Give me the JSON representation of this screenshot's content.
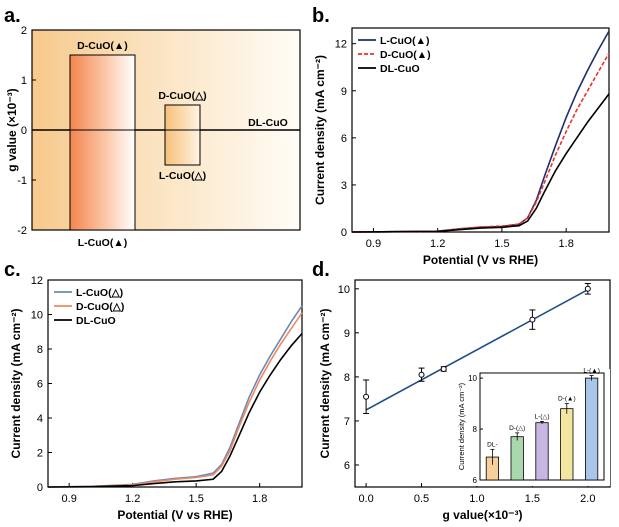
{
  "chart_data": [
    {
      "panel": "a.",
      "type": "bar",
      "ylabel": "g value (×10⁻³)",
      "ylim": [
        -2,
        2
      ],
      "yticks": [
        "-2",
        "-1",
        "0",
        "1",
        "2"
      ],
      "bars": [
        {
          "label": "D-CuO(▲)",
          "value": 1.5
        },
        {
          "label": "L-CuO(▲)",
          "value": -2.0
        },
        {
          "label": "D-CuO(△)",
          "value": 0.5
        },
        {
          "label": "L-CuO(△)",
          "value": -0.7
        },
        {
          "label": "DL-CuO",
          "value": 0
        }
      ]
    },
    {
      "panel": "b.",
      "type": "line",
      "xlabel": "Potential (V vs RHE)",
      "ylabel": "Current density (mA cm⁻²)",
      "xlim": [
        0.8,
        2.0
      ],
      "ylim": [
        0,
        13
      ],
      "xticks": [
        "0.9",
        "1.2",
        "1.5",
        "1.8"
      ],
      "yticks": [
        "0",
        "3",
        "6",
        "9",
        "12"
      ],
      "series": [
        {
          "name": "L-CuO(▲)",
          "color": "#1f2e6e",
          "dash": "",
          "x": [
            0.8,
            1.0,
            1.2,
            1.3,
            1.4,
            1.5,
            1.58,
            1.62,
            1.66,
            1.7,
            1.75,
            1.8,
            1.85,
            1.9,
            1.95,
            2.0
          ],
          "y": [
            0,
            0.02,
            0.05,
            0.2,
            0.3,
            0.35,
            0.5,
            0.9,
            2.0,
            3.6,
            5.5,
            7.3,
            8.9,
            10.3,
            11.6,
            12.8
          ]
        },
        {
          "name": "D-CuO(▲)",
          "color": "#e8322b",
          "dash": "4,2",
          "x": [
            0.8,
            1.0,
            1.2,
            1.3,
            1.4,
            1.5,
            1.58,
            1.62,
            1.66,
            1.7,
            1.75,
            1.8,
            1.85,
            1.9,
            1.95,
            2.0
          ],
          "y": [
            0,
            0.02,
            0.05,
            0.2,
            0.32,
            0.38,
            0.5,
            0.9,
            1.9,
            3.2,
            4.9,
            6.4,
            7.8,
            9.0,
            10.2,
            11.4
          ]
        },
        {
          "name": "DL-CuO",
          "color": "#000000",
          "dash": "",
          "x": [
            0.8,
            1.0,
            1.2,
            1.3,
            1.4,
            1.5,
            1.58,
            1.62,
            1.66,
            1.7,
            1.75,
            1.8,
            1.85,
            1.9,
            1.95,
            2.0
          ],
          "y": [
            0,
            0.02,
            0.04,
            0.15,
            0.25,
            0.3,
            0.4,
            0.7,
            1.5,
            2.6,
            3.9,
            5.0,
            6.0,
            7.0,
            7.9,
            8.8
          ]
        }
      ]
    },
    {
      "panel": "c.",
      "type": "line",
      "xlabel": "Potential (V vs RHE)",
      "ylabel": "Current density (mA cm⁻²)",
      "xlim": [
        0.8,
        2.0
      ],
      "ylim": [
        0,
        12
      ],
      "xticks": [
        "0.9",
        "1.2",
        "1.5",
        "1.8"
      ],
      "yticks": [
        "0",
        "2",
        "4",
        "6",
        "8",
        "10",
        "12"
      ],
      "series": [
        {
          "name": "L-CuO(△)",
          "color": "#6e88b8",
          "x": [
            0.8,
            1.0,
            1.2,
            1.3,
            1.4,
            1.5,
            1.58,
            1.62,
            1.66,
            1.7,
            1.75,
            1.8,
            1.85,
            1.9,
            1.95,
            2.0
          ],
          "y": [
            0,
            0.03,
            0.15,
            0.35,
            0.5,
            0.6,
            0.8,
            1.3,
            2.3,
            3.6,
            5.2,
            6.5,
            7.6,
            8.6,
            9.6,
            10.5
          ]
        },
        {
          "name": "D-CuO(△)",
          "color": "#f08a5d",
          "x": [
            0.8,
            1.0,
            1.2,
            1.3,
            1.4,
            1.5,
            1.58,
            1.62,
            1.66,
            1.7,
            1.75,
            1.8,
            1.85,
            1.9,
            1.95,
            2.0
          ],
          "y": [
            0,
            0.03,
            0.12,
            0.3,
            0.45,
            0.55,
            0.7,
            1.2,
            2.1,
            3.4,
            4.9,
            6.2,
            7.3,
            8.3,
            9.2,
            10.1
          ]
        },
        {
          "name": "DL-CuO",
          "color": "#000000",
          "x": [
            0.8,
            1.0,
            1.2,
            1.3,
            1.4,
            1.5,
            1.58,
            1.62,
            1.66,
            1.7,
            1.75,
            1.8,
            1.85,
            1.9,
            1.95,
            2.0
          ],
          "y": [
            0,
            0.02,
            0.08,
            0.2,
            0.3,
            0.35,
            0.45,
            0.9,
            1.8,
            2.9,
            4.3,
            5.5,
            6.5,
            7.4,
            8.2,
            8.9
          ]
        }
      ]
    },
    {
      "panel": "d.",
      "type": "scatter",
      "xlabel": "g value(×10⁻³)",
      "ylabel": "Current density (mA cm⁻²)",
      "xlim": [
        -0.1,
        2.2
      ],
      "ylim": [
        5.5,
        10.2
      ],
      "xticks": [
        "0.0",
        "0.5",
        "1.0",
        "1.5",
        "2.0"
      ],
      "yticks": [
        "6",
        "7",
        "8",
        "9",
        "10"
      ],
      "fit_line": {
        "x": [
          0,
          2.0
        ],
        "y": [
          7.25,
          9.98
        ]
      },
      "points": [
        {
          "x": 0,
          "y": 7.55,
          "err": 0.38
        },
        {
          "x": 0.5,
          "y": 8.05,
          "err": 0.15
        },
        {
          "x": 0.7,
          "y": 8.18,
          "err": 0.05
        },
        {
          "x": 1.5,
          "y": 9.3,
          "err": 0.22
        },
        {
          "x": 2.0,
          "y": 10.0,
          "err": 0.12
        }
      ],
      "inset": {
        "type": "bar",
        "ylabel": "Current density (mA cm⁻²)",
        "ylim": [
          6,
          10.2
        ],
        "yticks": [
          "6",
          "8",
          "10"
        ],
        "bars": [
          {
            "label": "DL-",
            "value": 6.9,
            "err": 0.3,
            "color": "#f6cf9a"
          },
          {
            "label": "D-(△)",
            "value": 7.7,
            "err": 0.15,
            "color": "#a9d8ae"
          },
          {
            "label": "L-(△)",
            "value": 8.25,
            "err": 0.05,
            "color": "#c7b6e2"
          },
          {
            "label": "D-(▲)",
            "value": 8.8,
            "err": 0.2,
            "color": "#f3e6a0"
          },
          {
            "label": "L-(▲)",
            "value": 10.0,
            "err": 0.1,
            "color": "#a9c6ea"
          }
        ]
      }
    }
  ]
}
